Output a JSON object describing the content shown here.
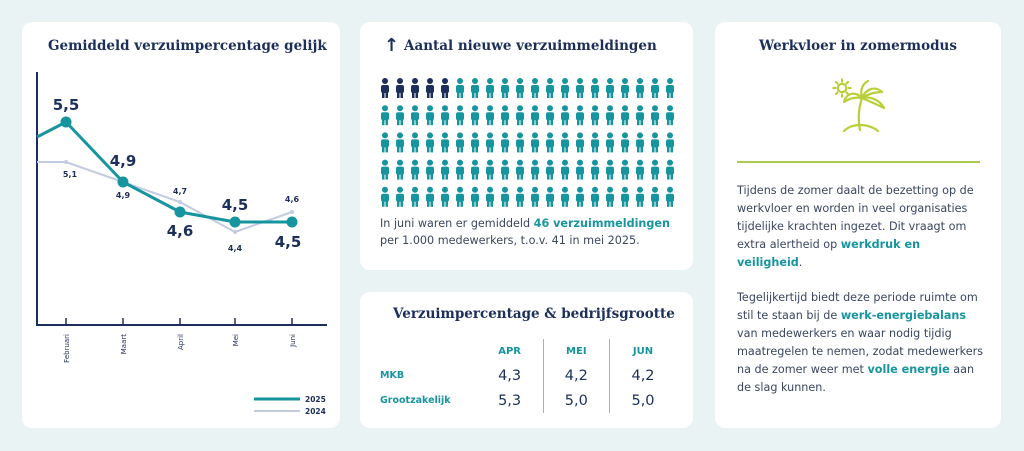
{
  "chart_card": {
    "title": "Gemiddeld verzuimpercentage gelijk"
  },
  "chart_data": {
    "type": "line",
    "title": "Gemiddeld verzuimpercentage gelijk",
    "categories": [
      "Februari",
      "Maart",
      "April",
      "Mei",
      "Juni"
    ],
    "series": [
      {
        "name": "2025",
        "values": [
          5.5,
          4.9,
          4.6,
          4.5,
          4.5
        ],
        "labels": [
          "5,5",
          "4,9",
          "4,6",
          "4,5",
          "4,5"
        ],
        "color": "#16959f"
      },
      {
        "name": "2024",
        "values": [
          5.1,
          4.9,
          4.7,
          4.4,
          4.6
        ],
        "labels": [
          "5,1",
          "4,9",
          "4,7",
          "4,4",
          "4,6"
        ],
        "color": "#c3cbe0"
      }
    ],
    "ylim": [
      3.5,
      6.0
    ],
    "xlabel": "",
    "ylabel": ""
  },
  "meld_card": {
    "arrow": "↑",
    "title": "Aantal nieuwe verzuimmeldingen",
    "highlighted_icons": 5,
    "total_icons": 100,
    "text_pre": "In juni waren er gemiddeld ",
    "text_hl": "46 verzuimmeldingen",
    "text_post": " per 1.000 medewerkers, t.o.v. 41 in mei 2025."
  },
  "size_card": {
    "title": "Verzuimpercentage & bedrijfsgrootte",
    "columns": [
      "APR",
      "MEI",
      "JUN"
    ],
    "rows": [
      {
        "label": "MKB",
        "values": [
          "4,3",
          "4,2",
          "4,2"
        ]
      },
      {
        "label": "Grootzakelijk",
        "values": [
          "5,3",
          "5,0",
          "5,0"
        ]
      }
    ]
  },
  "summer_card": {
    "title": "Werkvloer in zomermodus",
    "icon": "palm-tree-icon",
    "p1_pre": "Tijdens de zomer daalt de bezetting op de werkvloer en worden in veel organisaties tijdelijke krachten ingezet. Dit vraagt om extra alertheid op ",
    "p1_hl": "werkdruk en veiligheid",
    "p1_post": ".",
    "p2_pre": "Tegelijkertijd biedt deze periode ruimte om stil te staan bij de ",
    "p2_hl1": "werk-energiebalans",
    "p2_mid": " van medewerkers en waar nodig tijdig maatregelen te nemen, zodat medewerkers na de zomer weer met ",
    "p2_hl2": "volle energie",
    "p2_post": " aan de slag kunnen."
  },
  "colors": {
    "accent": "#16959f",
    "navy": "#1c2e5a",
    "line2024": "#c3cbe0",
    "rule": "#a9c94f",
    "palm_sun": "#b9cf3a"
  }
}
